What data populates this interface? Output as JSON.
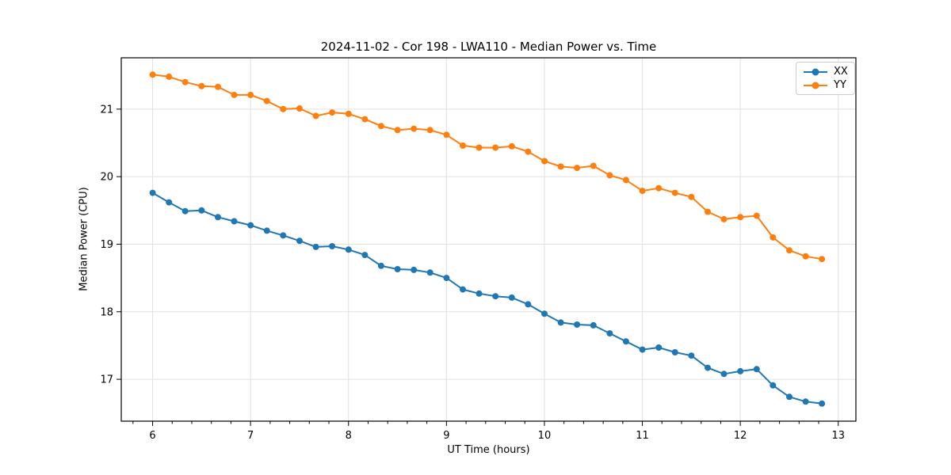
{
  "chart_data": {
    "type": "line",
    "title": "2024-11-02 - Cor 198 - LWA110 - Median Power vs. Time",
    "xlabel": "UT Time (hours)",
    "ylabel": "Median Power (CPU)",
    "xlim": [
      5.68,
      13.18
    ],
    "ylim": [
      16.38,
      21.76
    ],
    "x_ticks": [
      6,
      7,
      8,
      9,
      10,
      11,
      12,
      13
    ],
    "y_ticks": [
      17,
      18,
      19,
      20,
      21
    ],
    "x_minor_step": 0.2,
    "grid": true,
    "legend_position": "upper right",
    "x": [
      6.0,
      6.167,
      6.333,
      6.5,
      6.667,
      6.833,
      7.0,
      7.167,
      7.333,
      7.5,
      7.667,
      7.833,
      8.0,
      8.167,
      8.333,
      8.5,
      8.667,
      8.833,
      9.0,
      9.167,
      9.333,
      9.5,
      9.667,
      9.833,
      10.0,
      10.167,
      10.333,
      10.5,
      10.667,
      10.833,
      11.0,
      11.167,
      11.333,
      11.5,
      11.667,
      11.833,
      12.0,
      12.167,
      12.333,
      12.5,
      12.667,
      12.833
    ],
    "series": [
      {
        "name": "XX",
        "color": "#1f77b4",
        "values": [
          19.76,
          19.62,
          19.49,
          19.5,
          19.4,
          19.34,
          19.28,
          19.2,
          19.13,
          19.05,
          18.96,
          18.97,
          18.92,
          18.84,
          18.68,
          18.63,
          18.62,
          18.58,
          18.5,
          18.33,
          18.27,
          18.23,
          18.21,
          18.11,
          17.97,
          17.84,
          17.81,
          17.8,
          17.68,
          17.56,
          17.44,
          17.47,
          17.4,
          17.35,
          17.17,
          17.08,
          17.12,
          17.15,
          16.91,
          16.74,
          16.67,
          16.64
        ]
      },
      {
        "name": "YY",
        "color": "#ff7f0e",
        "values": [
          21.51,
          21.48,
          21.4,
          21.34,
          21.33,
          21.21,
          21.21,
          21.12,
          21.0,
          21.01,
          20.9,
          20.95,
          20.93,
          20.85,
          20.75,
          20.69,
          20.71,
          20.69,
          20.62,
          20.46,
          20.43,
          20.43,
          20.45,
          20.37,
          20.23,
          20.15,
          20.13,
          20.16,
          20.02,
          19.95,
          19.79,
          19.83,
          19.76,
          19.7,
          19.48,
          19.37,
          19.4,
          19.42,
          19.1,
          18.91,
          18.82,
          18.78
        ]
      }
    ],
    "style": {
      "background": "#ffffff",
      "grid_color": "#e0e0e0",
      "spine_color": "#000000",
      "tick_color": "#000000"
    }
  }
}
